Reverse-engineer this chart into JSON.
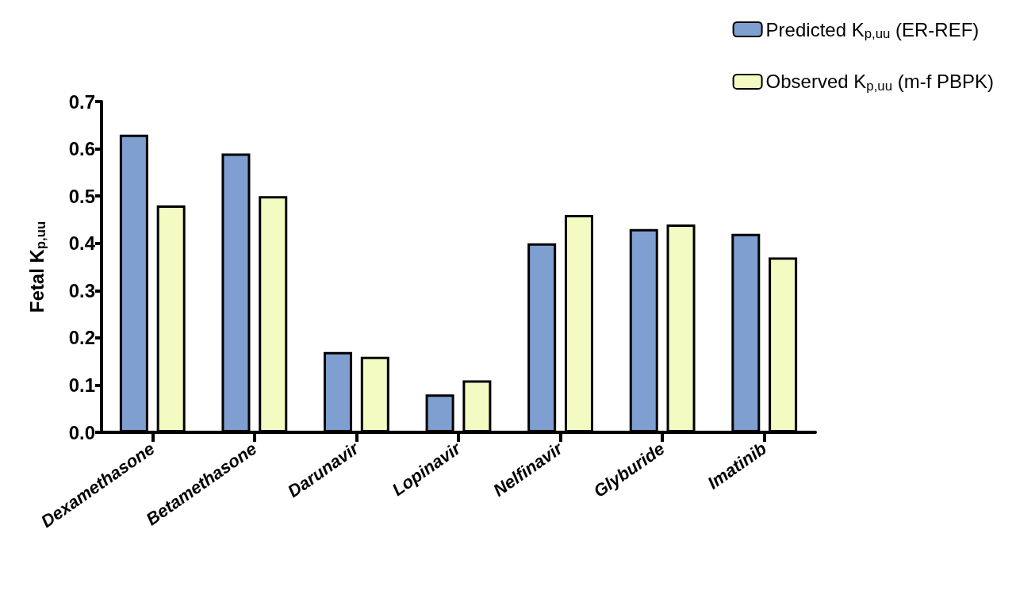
{
  "chart_data": {
    "type": "bar",
    "ylabel": "Fetal K$_{p,uu}$",
    "categories": [
      "Dexamethasone",
      "Betamethasone",
      "Darunavir",
      "Lopinavir",
      "Nelfinavir",
      "Glyburide",
      "Imatinib"
    ],
    "series": [
      {
        "name": "Predicted K$_{p,uu}$ (ER-REF)",
        "color": "#7f9fd0",
        "values": [
          0.63,
          0.59,
          0.17,
          0.08,
          0.4,
          0.43,
          0.42
        ]
      },
      {
        "name": "Observed K$_{p,uu}$ (m-f PBPK)",
        "color": "#f4fbc2",
        "values": [
          0.48,
          0.5,
          0.16,
          0.11,
          0.46,
          0.44,
          0.37
        ]
      }
    ],
    "ylim": [
      0,
      0.7
    ],
    "yticks": [
      {
        "value": 0,
        "label": "0.0"
      },
      0.1,
      0.2,
      0.3,
      0.4,
      0.5,
      0.6,
      0.7
    ],
    "legend": "top right",
    "grid": false
  }
}
